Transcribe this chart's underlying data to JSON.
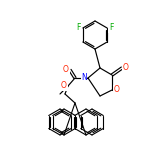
{
  "background_color": "#ffffff",
  "bond_color": "#000000",
  "atom_colors": {
    "F": "#00aa00",
    "O": "#ff2200",
    "N": "#0000ff",
    "C": "#000000"
  },
  "figsize": [
    1.52,
    1.52
  ],
  "dpi": 100
}
